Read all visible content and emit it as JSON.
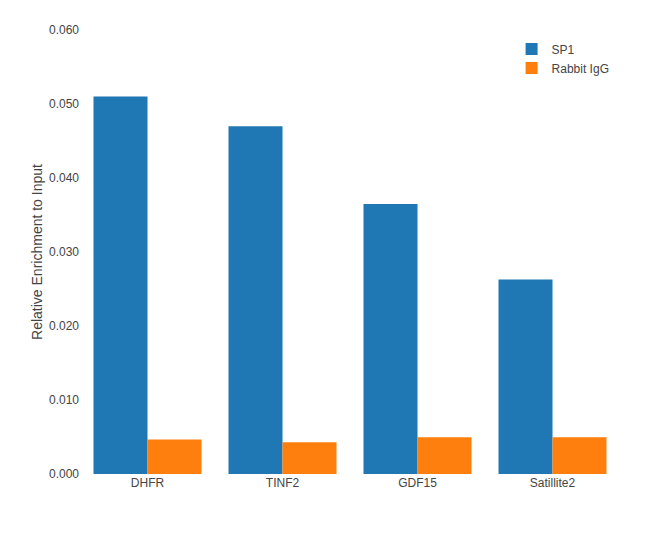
{
  "chart_data": {
    "type": "bar",
    "categories": [
      "DHFR",
      "TINF2",
      "GDF15",
      "Satillite2"
    ],
    "series": [
      {
        "name": "SP1",
        "values": [
          0.051,
          0.047,
          0.0365,
          0.0263
        ]
      },
      {
        "name": "Rabbit IgG",
        "values": [
          0.00465,
          0.0043,
          0.00495,
          0.00495
        ]
      }
    ],
    "ylabel": "Relative Enrichment to Input",
    "ylim": [
      0,
      0.06
    ],
    "yticks": [
      {
        "value": 0,
        "label": "0.000"
      },
      {
        "value": 0.01,
        "label": "0.010"
      },
      {
        "value": 0.02,
        "label": "0.020"
      },
      {
        "value": 0.03,
        "label": "0.030"
      },
      {
        "value": 0.04,
        "label": "0.040"
      },
      {
        "value": 0.05,
        "label": "0.050"
      },
      {
        "value": 0.06,
        "label": "0.060"
      }
    ],
    "grid": false,
    "legend": "upper right"
  }
}
